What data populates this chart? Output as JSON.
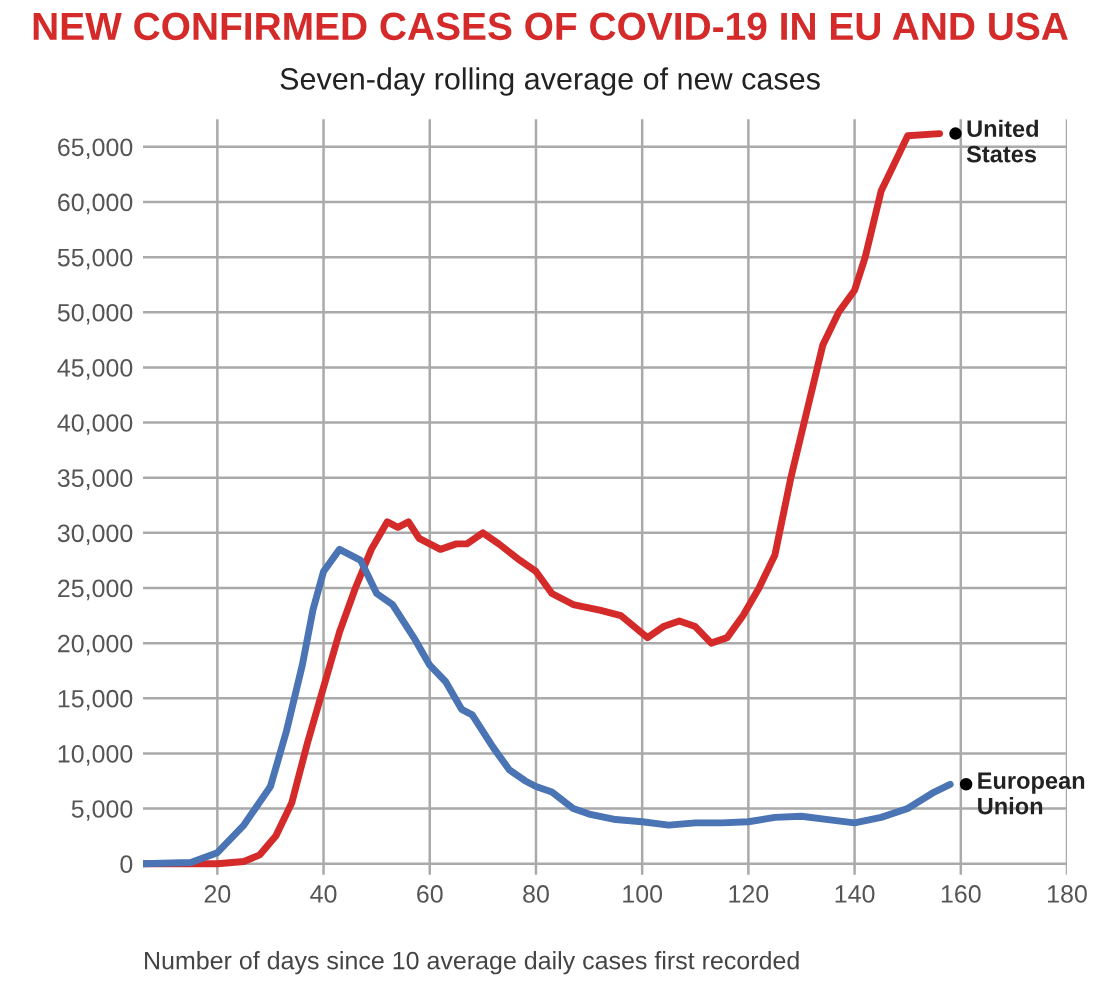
{
  "chart_data": {
    "type": "line",
    "title": "NEW CONFIRMED CASES OF COVID-19 IN EU AND USA",
    "subtitle": "Seven-day rolling average of new cases",
    "xlabel": "Number of days since 10 average daily cases first recorded",
    "xlim": [
      6,
      180
    ],
    "xticks": [
      20,
      40,
      60,
      80,
      100,
      120,
      140,
      160,
      180
    ],
    "ylim": [
      -1000,
      67500
    ],
    "yticks": [
      {
        "value": 0,
        "label": "0"
      },
      {
        "value": 5000,
        "label": "5,000"
      },
      {
        "value": 10000,
        "label": "10,000"
      },
      {
        "value": 15000,
        "label": "15,000"
      },
      {
        "value": 20000,
        "label": "20,000"
      },
      {
        "value": 25000,
        "label": "25,000"
      },
      {
        "value": 30000,
        "label": "30,000"
      },
      {
        "value": 35000,
        "label": "35,000"
      },
      {
        "value": 40000,
        "label": "40,000"
      },
      {
        "value": 45000,
        "label": "45,000"
      },
      {
        "value": 50000,
        "label": "50,000"
      },
      {
        "value": 55000,
        "label": "55,000"
      },
      {
        "value": 60000,
        "label": "60,000"
      },
      {
        "value": 65000,
        "label": "65,000"
      }
    ],
    "grid": true,
    "legend": false,
    "line_style": "solid",
    "series": [
      {
        "name": "United States",
        "color": "#d42a2a",
        "x": [
          6,
          20,
          25,
          28,
          31,
          34,
          37,
          40,
          43,
          46,
          49,
          52,
          54,
          56,
          58,
          62,
          65,
          67,
          70,
          73,
          77,
          80,
          83,
          87,
          92,
          96,
          101,
          104,
          107,
          110,
          113,
          116,
          119,
          122,
          125,
          128,
          131,
          134,
          137,
          140,
          142,
          145,
          147,
          150,
          156
        ],
        "values": [
          0,
          0,
          200,
          800,
          2500,
          5500,
          11000,
          16000,
          21000,
          25000,
          28500,
          31000,
          30500,
          31000,
          29500,
          28500,
          29000,
          29000,
          30000,
          29000,
          27500,
          26500,
          24500,
          23500,
          23000,
          22500,
          20500,
          21500,
          22000,
          21500,
          20000,
          20500,
          22500,
          25000,
          28000,
          35000,
          41000,
          47000,
          50000,
          52000,
          55000,
          61000,
          63000,
          66000,
          66200
        ]
      },
      {
        "name": "European Union",
        "color": "#4a74b4",
        "x": [
          6,
          15,
          20,
          25,
          30,
          33,
          36,
          38,
          40,
          43,
          45,
          47,
          50,
          53,
          57,
          60,
          63,
          66,
          68,
          72,
          75,
          78,
          80,
          83,
          87,
          90,
          95,
          100,
          105,
          110,
          115,
          120,
          125,
          130,
          135,
          140,
          145,
          150,
          155,
          158
        ],
        "values": [
          0,
          100,
          1000,
          3500,
          7000,
          12000,
          18000,
          23000,
          26500,
          28500,
          28000,
          27500,
          24500,
          23500,
          20500,
          18000,
          16500,
          14000,
          13500,
          10500,
          8500,
          7500,
          7000,
          6500,
          5000,
          4500,
          4000,
          3800,
          3500,
          3700,
          3700,
          3800,
          4200,
          4300,
          4000,
          3700,
          4200,
          5000,
          6500,
          7200
        ]
      }
    ]
  }
}
